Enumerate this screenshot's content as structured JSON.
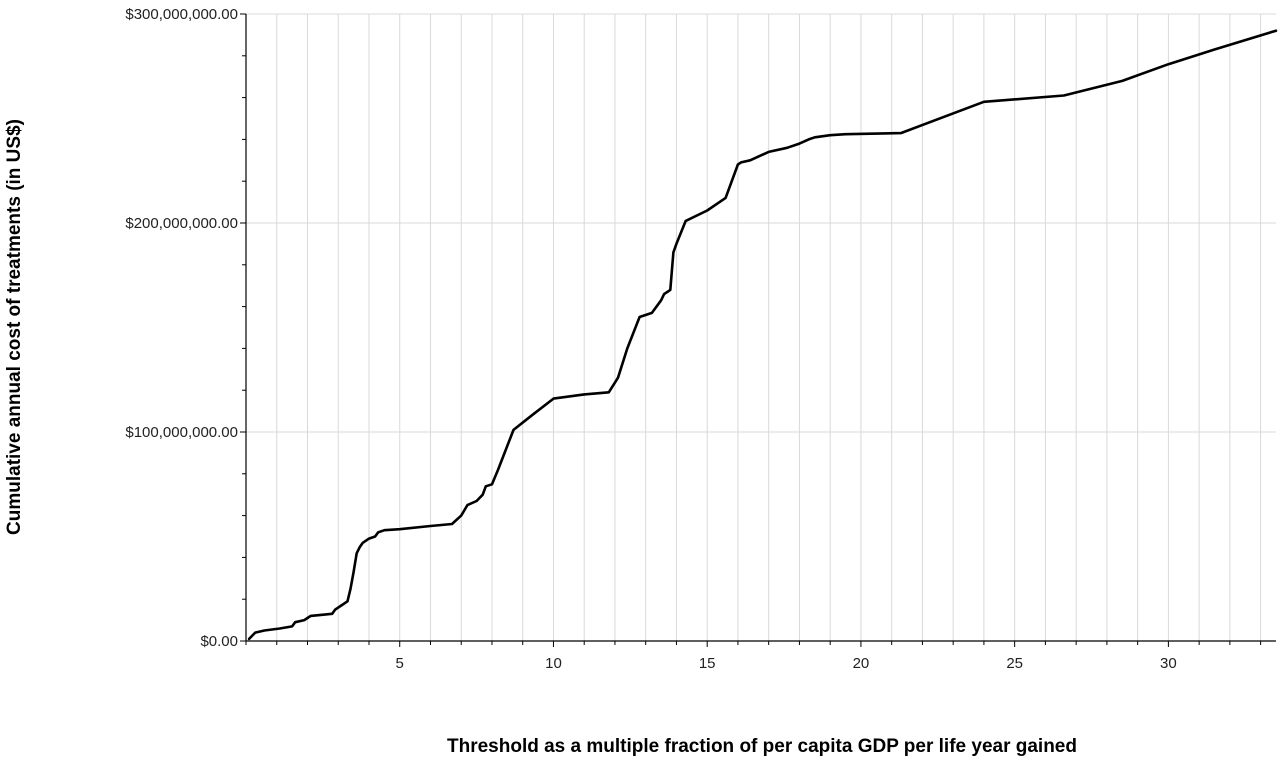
{
  "chart_data": {
    "type": "line",
    "title": "",
    "xlabel": "Threshold as a multiple fraction of per capita GDP per life year gained",
    "ylabel": "Cumulative annual cost of treatments (in US$)",
    "xlim": [
      0,
      33.5
    ],
    "ylim": [
      0,
      300000000
    ],
    "xticks": [
      5,
      10,
      15,
      20,
      25,
      30
    ],
    "xtick_labels": [
      "5",
      "10",
      "15",
      "20",
      "25",
      "30"
    ],
    "yticks": [
      0,
      100000000,
      200000000,
      300000000
    ],
    "ytick_labels": [
      "$0.00",
      "$100,000,000.00",
      "$200,000,000.00",
      "$300,000,000.00"
    ],
    "grid": {
      "x_minor_step": 1,
      "y_major_step": 100000000
    },
    "series": [
      {
        "name": "",
        "color": "#000000",
        "x": [
          0.1,
          0.3,
          0.6,
          1.1,
          1.5,
          1.6,
          1.9,
          2.0,
          2.1,
          2.8,
          2.9,
          3.1,
          3.3,
          3.4,
          3.5,
          3.6,
          3.7,
          3.8,
          4.0,
          4.2,
          4.3,
          4.5,
          5.0,
          6.0,
          6.7,
          7.0,
          7.2,
          7.5,
          7.7,
          7.8,
          8.0,
          8.2,
          8.7,
          9.3,
          10.0,
          11.0,
          11.8,
          12.1,
          12.4,
          12.8,
          13.2,
          13.5,
          13.6,
          13.8,
          13.9,
          14.0,
          14.3,
          15.0,
          15.6,
          16.0,
          16.1,
          16.4,
          17.0,
          17.6,
          18.0,
          18.3,
          18.5,
          19.0,
          19.5,
          21.3,
          24.0,
          26.6,
          28.5,
          30.0,
          31.5,
          33.5
        ],
        "y": [
          1000000,
          4000000,
          5000000,
          6000000,
          7000000,
          9000000,
          10000000,
          11000000,
          12000000,
          13000000,
          15000000,
          17000000,
          19000000,
          25000000,
          33000000,
          42000000,
          45000000,
          47000000,
          49000000,
          50000000,
          52000000,
          53000000,
          53500000,
          55000000,
          56000000,
          60000000,
          65000000,
          67000000,
          70000000,
          74000000,
          75000000,
          82000000,
          101000000,
          108000000,
          116000000,
          118000000,
          119000000,
          126000000,
          140000000,
          155000000,
          157000000,
          163000000,
          166000000,
          168000000,
          186000000,
          190000000,
          201000000,
          206000000,
          212000000,
          228000000,
          229000000,
          230000000,
          234000000,
          236000000,
          238000000,
          240000000,
          241000000,
          242000000,
          242500000,
          243000000,
          258000000,
          261000000,
          268000000,
          276000000,
          283000000,
          292000000
        ]
      }
    ]
  }
}
